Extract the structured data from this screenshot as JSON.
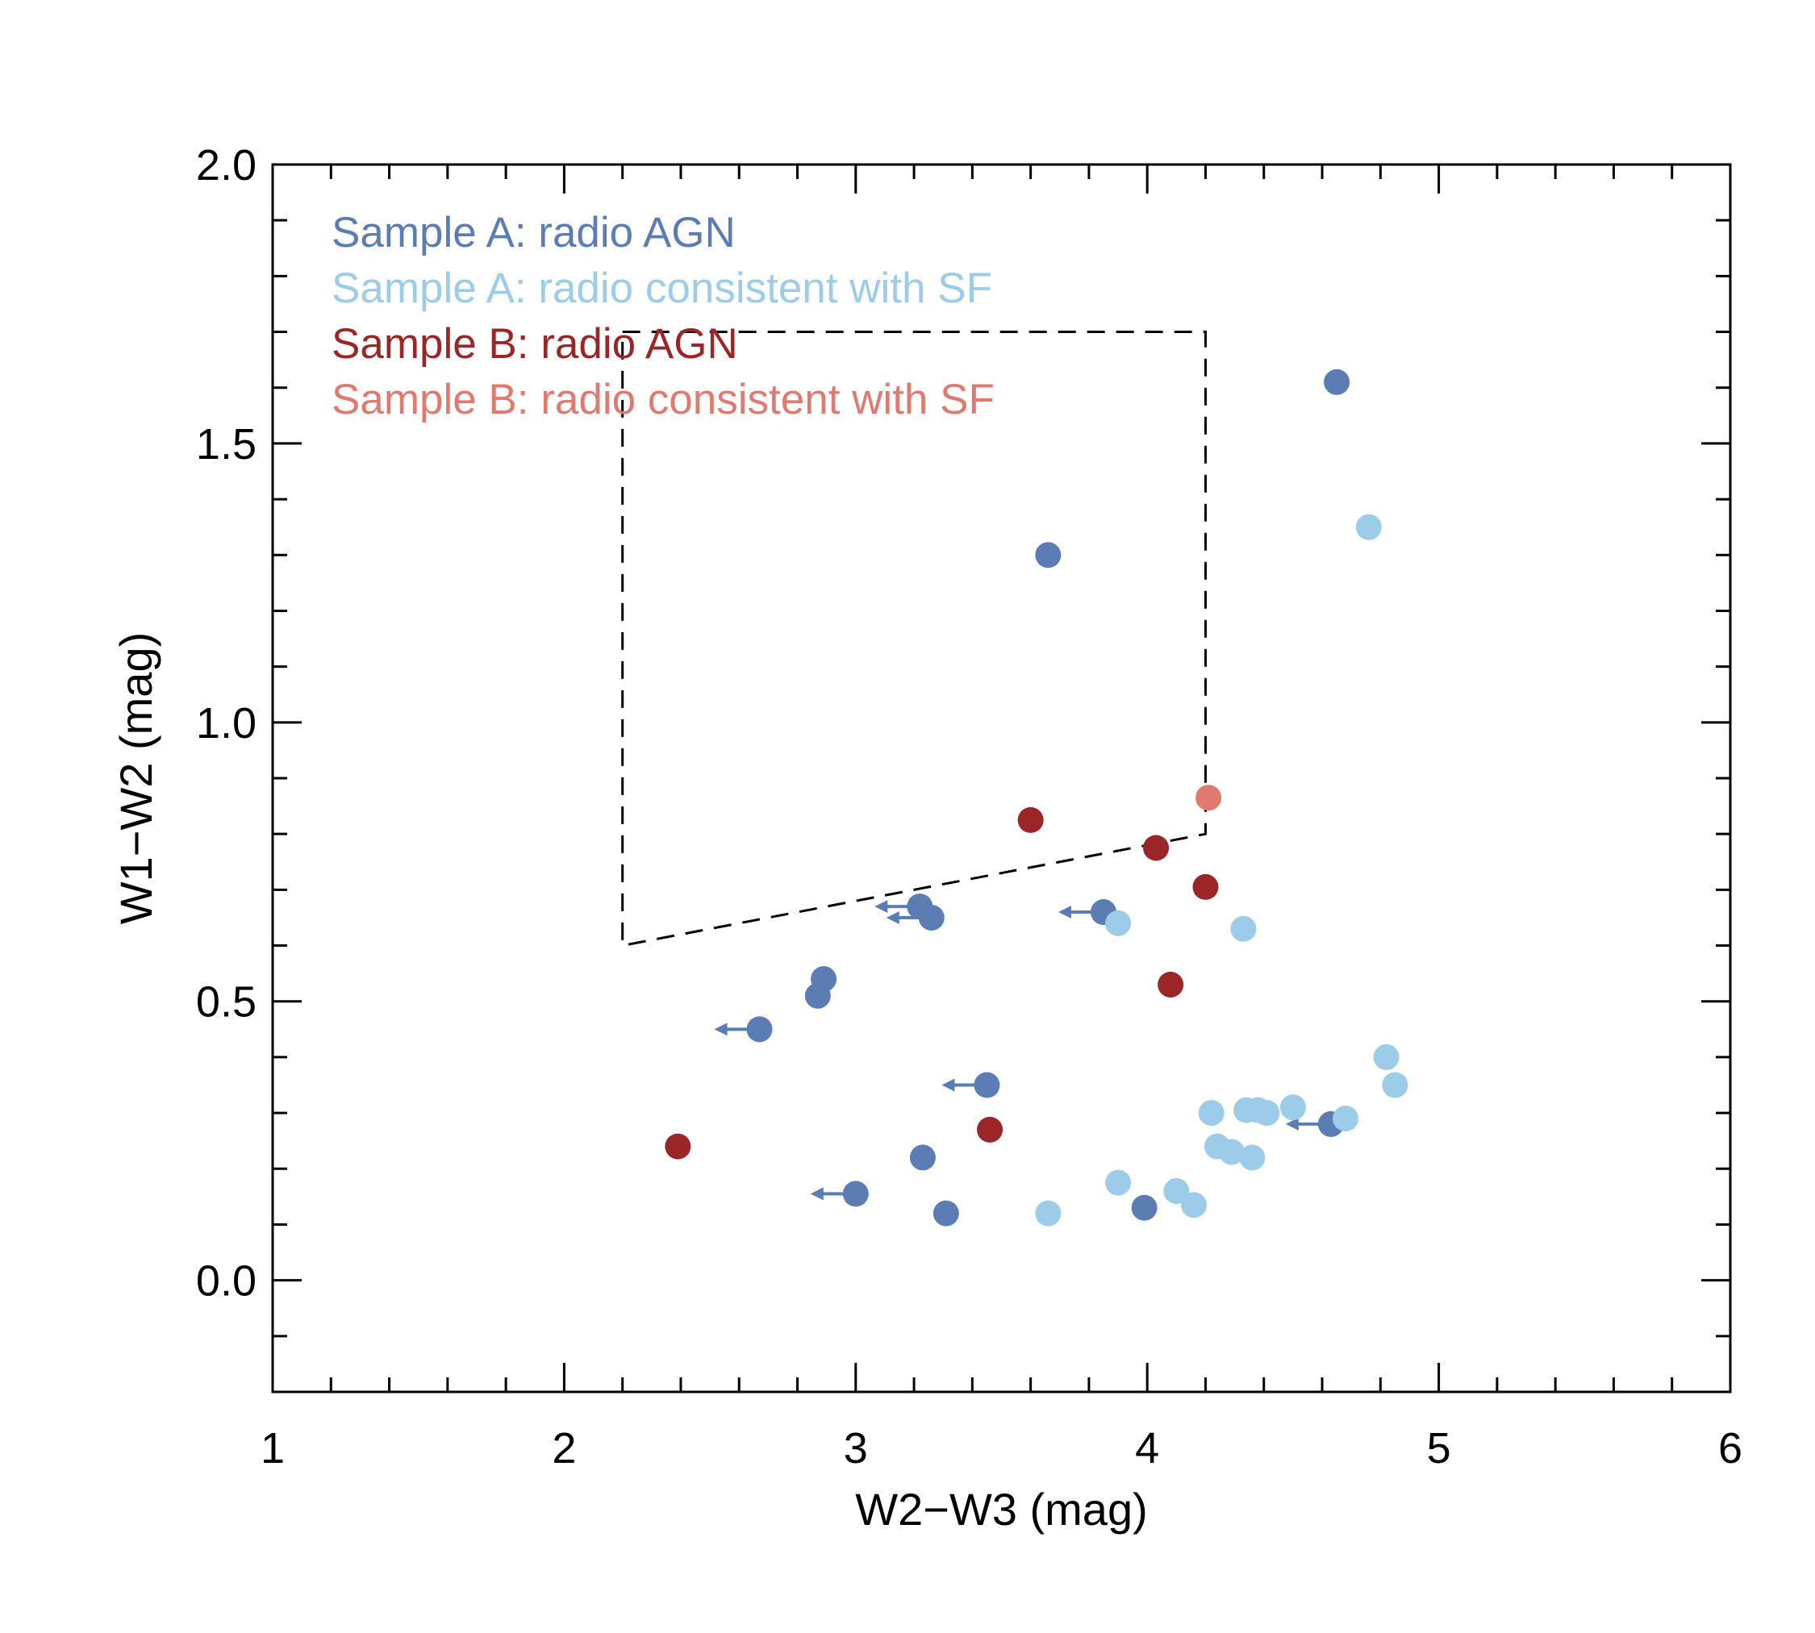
{
  "chart_data": {
    "type": "scatter",
    "title": "",
    "xlabel": "W2−W3 (mag)",
    "ylabel": "W1−W2 (mag)",
    "xlim": [
      1,
      6
    ],
    "ylim": [
      -0.2,
      2.0
    ],
    "x_ticks": [
      "1",
      "2",
      "3",
      "4",
      "5",
      "6"
    ],
    "y_ticks": [
      "0.0",
      "0.5",
      "1.0",
      "1.5",
      "2.0"
    ],
    "grid": false,
    "legend_position": "top-left",
    "series": [
      {
        "name": "Sample A: radio AGN",
        "color": "#5b7db4",
        "points": [
          {
            "x": 4.65,
            "y": 1.61
          },
          {
            "x": 3.66,
            "y": 1.3
          },
          {
            "x": 3.22,
            "y": 0.67,
            "upper_limit_x": true
          },
          {
            "x": 3.26,
            "y": 0.65,
            "upper_limit_x": true
          },
          {
            "x": 3.85,
            "y": 0.66,
            "upper_limit_x": true
          },
          {
            "x": 2.89,
            "y": 0.54
          },
          {
            "x": 2.87,
            "y": 0.51
          },
          {
            "x": 2.67,
            "y": 0.45,
            "upper_limit_x": true
          },
          {
            "x": 3.45,
            "y": 0.35,
            "upper_limit_x": true
          },
          {
            "x": 4.63,
            "y": 0.28,
            "upper_limit_x": true
          },
          {
            "x": 3.23,
            "y": 0.22
          },
          {
            "x": 3.0,
            "y": 0.155,
            "upper_limit_x": true
          },
          {
            "x": 3.31,
            "y": 0.12
          },
          {
            "x": 3.99,
            "y": 0.13
          }
        ]
      },
      {
        "name": "Sample A: radio consistent with SF",
        "color": "#9ccce8",
        "points": [
          {
            "x": 4.76,
            "y": 1.35
          },
          {
            "x": 3.9,
            "y": 0.64
          },
          {
            "x": 4.33,
            "y": 0.63
          },
          {
            "x": 4.82,
            "y": 0.4
          },
          {
            "x": 4.85,
            "y": 0.35
          },
          {
            "x": 4.22,
            "y": 0.3
          },
          {
            "x": 4.34,
            "y": 0.305
          },
          {
            "x": 4.38,
            "y": 0.305
          },
          {
            "x": 4.41,
            "y": 0.3
          },
          {
            "x": 4.5,
            "y": 0.31
          },
          {
            "x": 4.68,
            "y": 0.29
          },
          {
            "x": 4.24,
            "y": 0.24
          },
          {
            "x": 4.29,
            "y": 0.23
          },
          {
            "x": 4.36,
            "y": 0.22
          },
          {
            "x": 3.9,
            "y": 0.175
          },
          {
            "x": 4.1,
            "y": 0.16
          },
          {
            "x": 4.16,
            "y": 0.135
          },
          {
            "x": 3.66,
            "y": 0.12
          }
        ]
      },
      {
        "name": "Sample B: radio AGN",
        "color": "#9a2628",
        "points": [
          {
            "x": 3.6,
            "y": 0.825
          },
          {
            "x": 4.03,
            "y": 0.775
          },
          {
            "x": 4.2,
            "y": 0.705
          },
          {
            "x": 4.08,
            "y": 0.53
          },
          {
            "x": 3.46,
            "y": 0.27
          },
          {
            "x": 2.39,
            "y": 0.24
          }
        ]
      },
      {
        "name": "Sample B: radio consistent with SF",
        "color": "#e07a6e",
        "points": [
          {
            "x": 4.21,
            "y": 0.865
          }
        ]
      }
    ],
    "annotations": [
      {
        "type": "dashed-region",
        "description": "AGN selection wedge",
        "vertices": [
          [
            2.2,
            1.7
          ],
          [
            4.2,
            1.7
          ],
          [
            4.2,
            0.8
          ],
          [
            2.2,
            0.6
          ]
        ]
      }
    ]
  }
}
